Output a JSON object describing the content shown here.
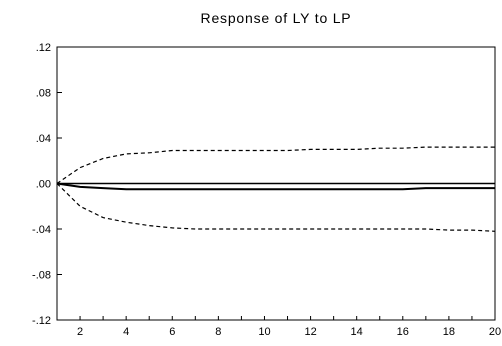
{
  "chart_data": {
    "type": "line",
    "title": "Response of LY to LP",
    "xlabel": "",
    "ylabel": "",
    "xlim": [
      1,
      20
    ],
    "ylim": [
      -0.12,
      0.12
    ],
    "x_ticks": [
      2,
      4,
      6,
      8,
      10,
      12,
      14,
      16,
      18,
      20
    ],
    "x_tick_labels": [
      "2",
      "4",
      "6",
      "8",
      "10",
      "12",
      "14",
      "16",
      "18",
      "20"
    ],
    "y_ticks": [
      0.12,
      0.08,
      0.04,
      0.0,
      -0.04,
      -0.08,
      -0.12
    ],
    "y_tick_labels": [
      ".12",
      ".08",
      ".04",
      ".00",
      "-.04",
      "-.08",
      "-.12"
    ],
    "grid": false,
    "zero_line": true,
    "series": [
      {
        "style": "solid",
        "color": "#000000",
        "x": [
          1,
          2,
          3,
          4,
          5,
          6,
          7,
          8,
          9,
          10,
          11,
          12,
          13,
          14,
          15,
          16,
          17,
          18,
          19,
          20
        ],
        "values": [
          0.0,
          -0.003,
          -0.004,
          -0.005,
          -0.005,
          -0.005,
          -0.005,
          -0.005,
          -0.005,
          -0.005,
          -0.005,
          -0.005,
          -0.005,
          -0.005,
          -0.005,
          -0.005,
          -0.004,
          -0.004,
          -0.004,
          -0.004
        ]
      },
      {
        "style": "dashed",
        "color": "#000000",
        "x": [
          1,
          2,
          3,
          4,
          5,
          6,
          7,
          8,
          9,
          10,
          11,
          12,
          13,
          14,
          15,
          16,
          17,
          18,
          19,
          20
        ],
        "values": [
          0.0,
          0.014,
          0.022,
          0.026,
          0.027,
          0.029,
          0.029,
          0.029,
          0.029,
          0.029,
          0.029,
          0.03,
          0.03,
          0.03,
          0.031,
          0.031,
          0.032,
          0.032,
          0.032,
          0.032
        ]
      },
      {
        "style": "dashed",
        "color": "#000000",
        "x": [
          1,
          2,
          3,
          4,
          5,
          6,
          7,
          8,
          9,
          10,
          11,
          12,
          13,
          14,
          15,
          16,
          17,
          18,
          19,
          20
        ],
        "values": [
          0.0,
          -0.02,
          -0.03,
          -0.034,
          -0.037,
          -0.039,
          -0.04,
          -0.04,
          -0.04,
          -0.04,
          -0.04,
          -0.04,
          -0.04,
          -0.04,
          -0.04,
          -0.04,
          -0.04,
          -0.041,
          -0.041,
          -0.042
        ]
      }
    ]
  }
}
